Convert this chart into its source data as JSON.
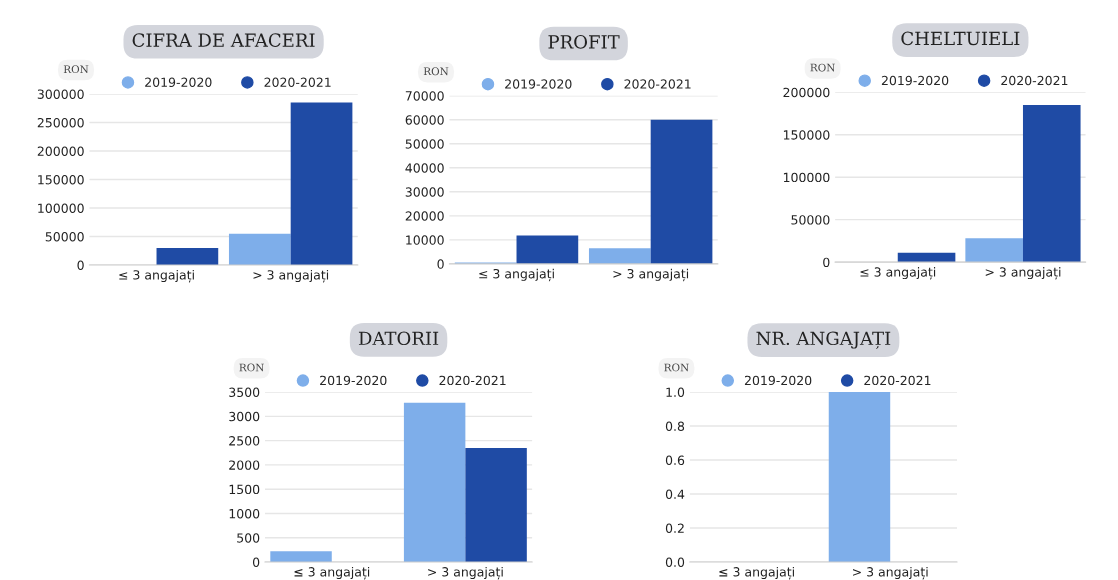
{
  "chart_data": [
    {
      "type": "bar",
      "title": "CIFRA DE AFACERI",
      "ylabel": "RON",
      "categories": [
        "≤ 3 angajați",
        "> 3 angajați"
      ],
      "series": [
        {
          "name": "2019-2020",
          "color": "#7eaeea",
          "values": [
            0,
            55000
          ]
        },
        {
          "name": "2020-2021",
          "color": "#1f4ba5",
          "values": [
            30000,
            285000
          ]
        }
      ],
      "ylim": [
        0,
        300000
      ],
      "yticks": [
        0,
        50000,
        100000,
        150000,
        200000,
        250000,
        300000
      ],
      "grid": "y",
      "legend": "top"
    },
    {
      "type": "bar",
      "title": "PROFIT",
      "ylabel": "RON",
      "categories": [
        "≤ 3 angajați",
        "> 3 angajați"
      ],
      "series": [
        {
          "name": "2019-2020",
          "color": "#7eaeea",
          "values": [
            600,
            6500
          ]
        },
        {
          "name": "2020-2021",
          "color": "#1f4ba5",
          "values": [
            11800,
            60000
          ]
        }
      ],
      "ylim": [
        0,
        70000
      ],
      "yticks": [
        0,
        10000,
        20000,
        30000,
        40000,
        50000,
        60000,
        70000
      ],
      "grid": "y",
      "legend": "top"
    },
    {
      "type": "bar",
      "title": "CHELTUIELI",
      "ylabel": "RON",
      "categories": [
        "≤ 3 angajați",
        "> 3 angajați"
      ],
      "series": [
        {
          "name": "2019-2020",
          "color": "#7eaeea",
          "values": [
            0,
            28000
          ]
        },
        {
          "name": "2020-2021",
          "color": "#1f4ba5",
          "values": [
            11000,
            185000
          ]
        }
      ],
      "ylim": [
        0,
        200000
      ],
      "yticks": [
        0,
        50000,
        100000,
        150000,
        200000
      ],
      "grid": "y",
      "legend": "top"
    },
    {
      "type": "bar",
      "title": "DATORII",
      "ylabel": "RON",
      "categories": [
        "≤ 3 angajați",
        "> 3 angajați"
      ],
      "series": [
        {
          "name": "2019-2020",
          "color": "#7eaeea",
          "values": [
            220,
            3280
          ]
        },
        {
          "name": "2020-2021",
          "color": "#1f4ba5",
          "values": [
            0,
            2350
          ]
        }
      ],
      "ylim": [
        0,
        3500
      ],
      "yticks": [
        0,
        500,
        1000,
        1500,
        2000,
        2500,
        3000,
        3500
      ],
      "grid": "y",
      "legend": "top"
    },
    {
      "type": "bar",
      "title": "NR. ANGAJAȚI",
      "ylabel": "RON",
      "categories": [
        "≤ 3 angajați",
        "> 3 angajați"
      ],
      "series": [
        {
          "name": "2019-2020",
          "color": "#7eaeea",
          "values": [
            0,
            1.0
          ]
        },
        {
          "name": "2020-2021",
          "color": "#1f4ba5",
          "values": [
            0,
            0
          ]
        }
      ],
      "ylim": [
        0,
        1.0
      ],
      "yticks": [
        {
          "value": 0,
          "label": "0.0"
        },
        {
          "value": 0.2,
          "label": "0.2"
        },
        {
          "value": 0.4,
          "label": "0.4"
        },
        {
          "value": 0.6,
          "label": "0.6"
        },
        {
          "value": 0.8,
          "label": "0.8"
        },
        {
          "value": 1.0,
          "label": "1.0"
        }
      ],
      "grid": "y",
      "legend": "top"
    }
  ]
}
